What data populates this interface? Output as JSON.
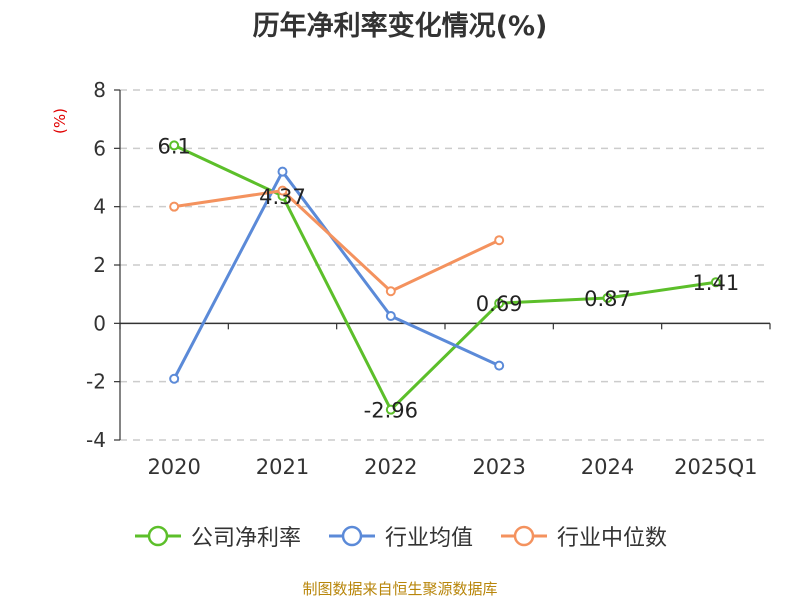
{
  "title": "历年净利率变化情况(%)",
  "source": "制图数据来自恒生聚源数据库",
  "colors": {
    "company": "#5cbf2a",
    "industry_avg": "#5b8ad8",
    "industry_median": "#f4925e",
    "axis": "#333333",
    "grid": "#cccccc",
    "unit": "#e00000"
  },
  "chart_data": {
    "type": "line",
    "ylabel": "(%)",
    "categories": [
      "2020",
      "2021",
      "2022",
      "2023",
      "2024",
      "2025Q1"
    ],
    "ylim": [
      -4,
      8
    ],
    "yticks": [
      -4,
      -2,
      0,
      2,
      4,
      6,
      8
    ],
    "grid": true,
    "legend_position": "bottom",
    "series": [
      {
        "name": "公司净利率",
        "color": "#5cbf2a",
        "values": [
          6.1,
          4.37,
          -2.96,
          0.69,
          0.87,
          1.41
        ],
        "labels": [
          "6.1",
          "4.37",
          "-2.96",
          "0.69",
          "0.87",
          "1.41"
        ]
      },
      {
        "name": "行业均值",
        "color": "#5b8ad8",
        "values": [
          -1.9,
          5.2,
          0.25,
          -1.45,
          null,
          null
        ]
      },
      {
        "name": "行业中位数",
        "color": "#f4925e",
        "values": [
          4.0,
          4.55,
          1.1,
          2.85,
          null,
          null
        ]
      }
    ]
  }
}
